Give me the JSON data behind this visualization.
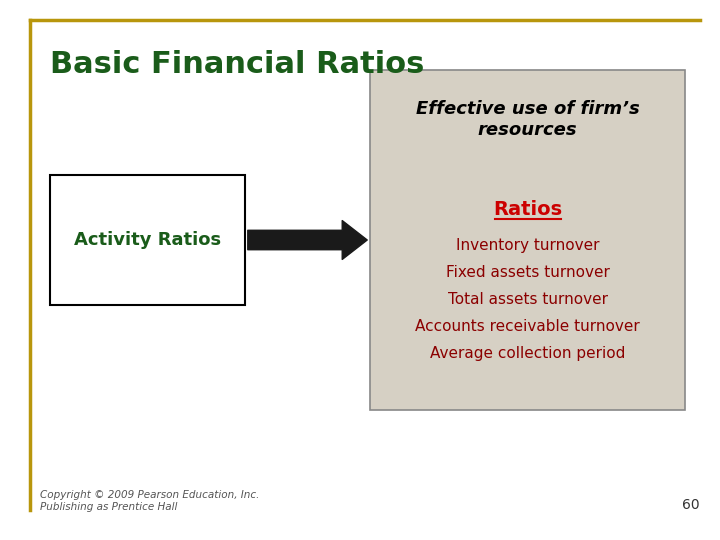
{
  "title": "Basic Financial Ratios",
  "title_color": "#1a5c1a",
  "title_fontsize": 22,
  "bg_color": "#ffffff",
  "border_top_color": "#b8960c",
  "border_left_color": "#b8960c",
  "left_box_text": "Activity Ratios",
  "left_box_text_color": "#1a5c1a",
  "left_box_bg": "#ffffff",
  "left_box_border": "#000000",
  "right_box_bg": "#d6d0c4",
  "right_box_border": "#888888",
  "right_box_header": "Effective use of firm’s\nresources",
  "right_box_header_color": "#000000",
  "right_box_subheader": "Ratios",
  "right_box_subheader_color": "#cc0000",
  "right_box_items": [
    "Inventory turnover",
    "Fixed assets turnover",
    "Total assets turnover",
    "Accounts receivable turnover",
    "Average collection period"
  ],
  "right_box_items_color": "#8b0000",
  "arrow_color": "#1a1a1a",
  "footer_text": "Copyright © 2009 Pearson Education, Inc.\nPublishing as Prentice Hall",
  "footer_color": "#555555",
  "page_number": "60",
  "page_number_color": "#333333"
}
